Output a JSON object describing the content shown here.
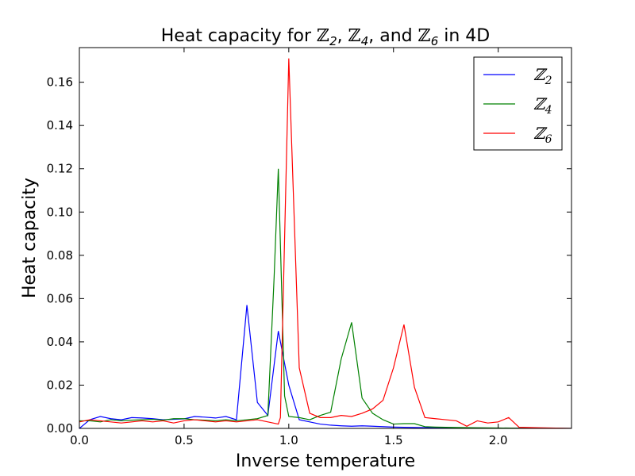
{
  "chart_data": {
    "type": "line",
    "title_parts": [
      "Heat capacity for ",
      "ℤ",
      "2",
      ", ",
      "ℤ",
      "4",
      ", and ",
      "ℤ",
      "6",
      " in 4D"
    ],
    "xlabel": "Inverse temperature",
    "ylabel": "Heat capacity",
    "xlim": [
      0.0,
      2.35
    ],
    "ylim": [
      0.0,
      0.176
    ],
    "xticks": [
      0.0,
      0.5,
      1.0,
      1.5,
      2.0
    ],
    "xtick_labels": [
      "0.0",
      "0.5",
      "1.0",
      "1.5",
      "2.0"
    ],
    "yticks": [
      0.0,
      0.02,
      0.04,
      0.06,
      0.08,
      0.1,
      0.12,
      0.14,
      0.16
    ],
    "ytick_labels": [
      "0.00",
      "0.02",
      "0.04",
      "0.06",
      "0.08",
      "0.10",
      "0.12",
      "0.14",
      "0.16"
    ],
    "grid": false,
    "legend_position": "top-right",
    "series": [
      {
        "name": "Z2",
        "legend_base": "ℤ",
        "legend_sub": "2",
        "color": "#0000ff",
        "x": [
          0.0,
          0.05,
          0.1,
          0.15,
          0.2,
          0.25,
          0.3,
          0.35,
          0.4,
          0.45,
          0.5,
          0.55,
          0.6,
          0.65,
          0.7,
          0.75,
          0.8,
          0.85,
          0.9,
          0.95,
          1.0,
          1.05,
          1.1,
          1.15,
          1.2,
          1.25,
          1.3,
          1.35,
          1.4,
          1.5,
          1.6,
          1.7,
          1.8,
          1.9,
          2.0,
          2.1,
          2.2,
          2.35
        ],
        "y": [
          0.0,
          0.004,
          0.0055,
          0.0045,
          0.004,
          0.005,
          0.0048,
          0.0045,
          0.004,
          0.0042,
          0.0044,
          0.0055,
          0.0052,
          0.0048,
          0.0055,
          0.004,
          0.057,
          0.012,
          0.006,
          0.045,
          0.02,
          0.004,
          0.003,
          0.002,
          0.0015,
          0.0012,
          0.001,
          0.0012,
          0.001,
          0.0006,
          0.0004,
          0.0003,
          0.0002,
          0.0002,
          0.0001,
          0.0001,
          0.0001,
          0.0
        ]
      },
      {
        "name": "Z4",
        "legend_base": "ℤ",
        "legend_sub": "4",
        "color": "#008000",
        "x": [
          0.0,
          0.05,
          0.1,
          0.15,
          0.2,
          0.25,
          0.3,
          0.35,
          0.4,
          0.45,
          0.5,
          0.55,
          0.6,
          0.65,
          0.7,
          0.75,
          0.8,
          0.85,
          0.9,
          0.93,
          0.95,
          0.98,
          1.0,
          1.05,
          1.1,
          1.15,
          1.2,
          1.25,
          1.3,
          1.35,
          1.4,
          1.45,
          1.5,
          1.55,
          1.6,
          1.65,
          1.7,
          1.8,
          1.9,
          2.0,
          2.1,
          2.2,
          2.35
        ],
        "y": [
          0.0035,
          0.0035,
          0.003,
          0.004,
          0.0035,
          0.0038,
          0.004,
          0.0042,
          0.0038,
          0.0045,
          0.0045,
          0.004,
          0.0038,
          0.0035,
          0.004,
          0.0035,
          0.004,
          0.0045,
          0.006,
          0.07,
          0.12,
          0.015,
          0.0055,
          0.005,
          0.004,
          0.006,
          0.0075,
          0.032,
          0.049,
          0.014,
          0.007,
          0.004,
          0.002,
          0.0022,
          0.0022,
          0.0008,
          0.0006,
          0.0004,
          0.0003,
          0.0002,
          0.0001,
          0.0001,
          0.0
        ]
      },
      {
        "name": "Z6",
        "legend_base": "ℤ",
        "legend_sub": "6",
        "color": "#ff0000",
        "x": [
          0.0,
          0.05,
          0.1,
          0.15,
          0.2,
          0.25,
          0.3,
          0.35,
          0.4,
          0.45,
          0.5,
          0.55,
          0.6,
          0.65,
          0.7,
          0.75,
          0.8,
          0.85,
          0.9,
          0.95,
          0.96,
          1.0,
          1.05,
          1.1,
          1.15,
          1.2,
          1.25,
          1.3,
          1.35,
          1.4,
          1.45,
          1.5,
          1.55,
          1.6,
          1.65,
          1.7,
          1.75,
          1.8,
          1.85,
          1.9,
          1.95,
          2.0,
          2.05,
          2.1,
          2.2,
          2.35
        ],
        "y": [
          0.003,
          0.004,
          0.0035,
          0.003,
          0.0025,
          0.003,
          0.0035,
          0.003,
          0.0035,
          0.0025,
          0.0035,
          0.004,
          0.0035,
          0.003,
          0.0035,
          0.003,
          0.0035,
          0.004,
          0.003,
          0.002,
          0.005,
          0.171,
          0.028,
          0.007,
          0.005,
          0.005,
          0.006,
          0.0055,
          0.007,
          0.009,
          0.013,
          0.028,
          0.048,
          0.019,
          0.005,
          0.0045,
          0.004,
          0.0035,
          0.001,
          0.0035,
          0.0025,
          0.003,
          0.005,
          0.0005,
          0.0003,
          0.0
        ]
      }
    ]
  }
}
